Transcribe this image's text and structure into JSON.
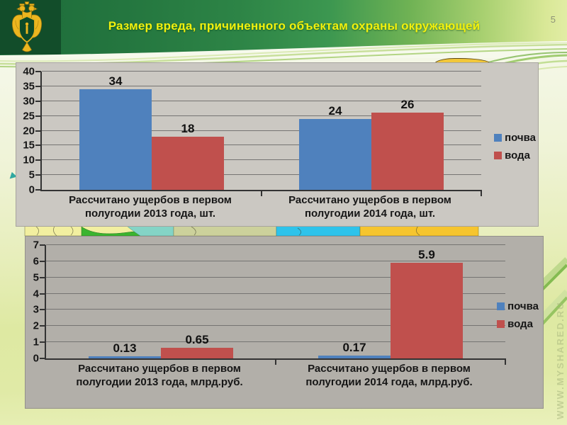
{
  "header": {
    "title": "Размер вреда, причиненного объектам охраны окружающей",
    "title_color": "#f2f00e",
    "emblem_icon": "double-headed-eagle-emblem"
  },
  "page": {
    "number": "5",
    "watermark": "WWW.MYSHARED.RU"
  },
  "colors": {
    "soil_series": "#4f81bd",
    "water_series": "#c0504d",
    "header_green_dark": "#124d2a",
    "panel_gray_top": "#cbc8c2",
    "panel_gray_bottom": "#b2afa9"
  },
  "chart_data": [
    {
      "type": "bar",
      "title": "",
      "xlabel": "",
      "ylabel": "",
      "categories": [
        "Рассчитано ущербов в первом полугодии 2013 года, шт.",
        "Рассчитано ущербов в первом полугодии 2014 года, шт."
      ],
      "series": [
        {
          "name": "почва",
          "color": "#4f81bd",
          "values": [
            34,
            24
          ],
          "labels": [
            "34",
            "24"
          ]
        },
        {
          "name": "вода",
          "color": "#c0504d",
          "values": [
            18,
            26
          ],
          "labels": [
            "18",
            "26"
          ]
        }
      ],
      "ylim": [
        0,
        40
      ],
      "ystep": 5,
      "grid": true,
      "legend_position": "right"
    },
    {
      "type": "bar",
      "title": "",
      "xlabel": "",
      "ylabel": "",
      "categories": [
        "Рассчитано ущербов в первом полугодии 2013 года, млрд.руб.",
        "Рассчитано ущербов в первом полугодии 2014 года, млрд.руб."
      ],
      "series": [
        {
          "name": "почва",
          "color": "#4f81bd",
          "values": [
            0.13,
            0.17
          ],
          "labels": [
            "0.13",
            "0.17"
          ]
        },
        {
          "name": "вода",
          "color": "#c0504d",
          "values": [
            0.65,
            5.9
          ],
          "labels": [
            "0.65",
            "5.9"
          ]
        }
      ],
      "ylim": [
        0,
        7
      ],
      "ystep": 1,
      "grid": true,
      "legend_position": "right"
    }
  ]
}
